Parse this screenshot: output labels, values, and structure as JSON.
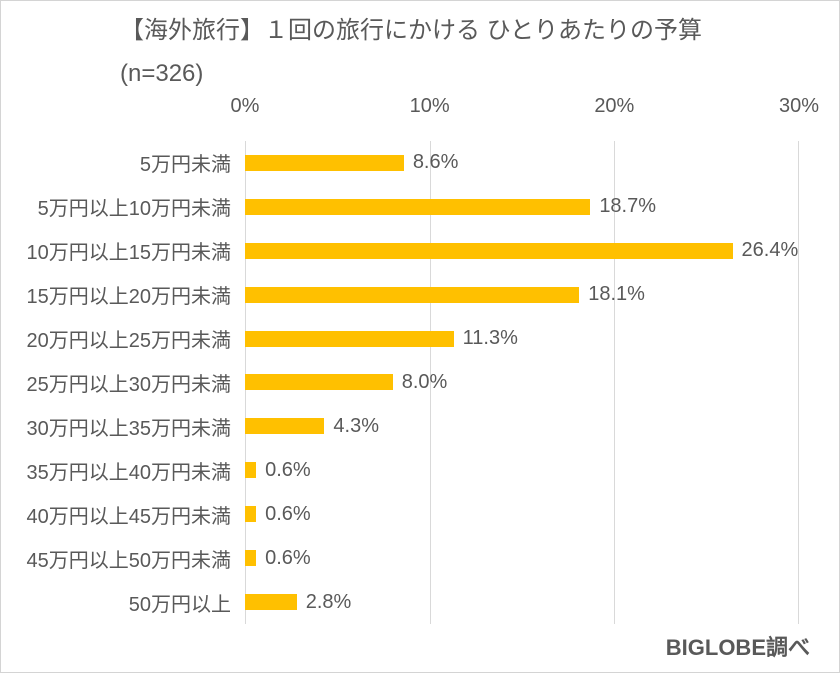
{
  "chart_data": {
    "type": "bar",
    "orientation": "horizontal",
    "title": "【海外旅行】１回の旅行にかける ひとりあたりの予算",
    "subtitle": "(n=326)",
    "categories": [
      "5万円未満",
      "5万円以上10万円未満",
      "10万円以上15万円未満",
      "15万円以上20万円未満",
      "20万円以上25万円未満",
      "25万円以上30万円未満",
      "30万円以上35万円未満",
      "35万円以上40万円未満",
      "40万円以上45万円未満",
      "45万円以上50万円未満",
      "50万円以上"
    ],
    "values": [
      8.6,
      18.7,
      26.4,
      18.1,
      11.3,
      8.0,
      4.3,
      0.6,
      0.6,
      0.6,
      2.8
    ],
    "value_labels": [
      "8.6%",
      "18.7%",
      "26.4%",
      "18.1%",
      "11.3%",
      "8.0%",
      "4.3%",
      "0.6%",
      "0.6%",
      "0.6%",
      "2.8%"
    ],
    "x_ticks": [
      0,
      10,
      20,
      30
    ],
    "x_tick_labels": [
      "0%",
      "10%",
      "20%",
      "30%"
    ],
    "xlim": [
      0,
      30
    ],
    "grid": "vertical",
    "legend": "none",
    "bar_color": "#FFC000",
    "text_color": "#595959",
    "gridline_color": "#D9D9D9",
    "source": "BIGLOBE調べ"
  }
}
